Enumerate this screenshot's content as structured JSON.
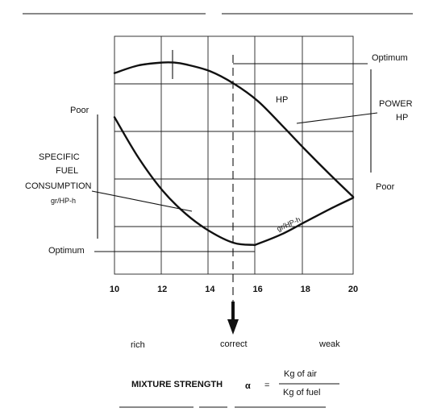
{
  "chart_data": {
    "type": "line",
    "x_ticks": [
      "10",
      "12",
      "14",
      "16",
      "18",
      "20"
    ],
    "xlim": [
      10,
      20
    ],
    "series": [
      {
        "name": "HP",
        "x": [
          10,
          11,
          12,
          12.5,
          13,
          14,
          15,
          16,
          17,
          18,
          19,
          20
        ],
        "y": [
          0.93,
          0.97,
          0.985,
          0.985,
          0.975,
          0.94,
          0.875,
          0.785,
          0.66,
          0.53,
          0.405,
          0.285
        ]
      },
      {
        "name": "gr/HP-h",
        "x": [
          10,
          11,
          12,
          13,
          14,
          15,
          15.8,
          16,
          17,
          18,
          19,
          20
        ],
        "y": [
          0.7,
          0.49,
          0.32,
          0.195,
          0.105,
          0.045,
          0.035,
          0.04,
          0.09,
          0.155,
          0.22,
          0.28
        ]
      }
    ],
    "texts": {
      "top_right_optimum": "Optimum",
      "right_power": "POWER",
      "right_hp": "HP",
      "right_poor": "Poor",
      "left_poor": "Poor",
      "left_specific": "SPECIFIC",
      "left_fuel": "FUEL",
      "left_consumption": "CONSUMPTION",
      "left_unit": "gr/HP-h",
      "left_optimum": "Optimum",
      "hp_label": "HP",
      "consumption_label": "gr/HP-h",
      "rich": "rich",
      "correct": "correct",
      "weak": "weak",
      "mixture_strength": "MIXTURE STRENGTH",
      "alpha": "α",
      "equals": "=",
      "numerator": "Kg  of  air",
      "denominator": "Kg  of  fuel"
    }
  }
}
